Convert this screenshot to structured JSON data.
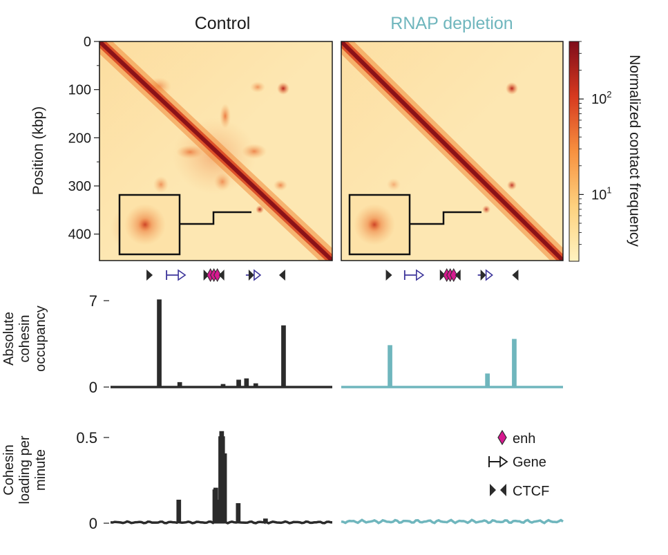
{
  "heatmaps": {
    "control_title": "Control",
    "rnap_title": "RNAP depletion",
    "ylabel": "Position (kbp)",
    "yticks": [
      "0",
      "100",
      "200",
      "300",
      "400"
    ],
    "ytick_values": [
      0,
      100,
      200,
      300,
      400
    ],
    "range_kbp": [
      0,
      455
    ]
  },
  "colorbar": {
    "label": "Normalized contact frequency",
    "ticks": [
      {
        "base": "10",
        "exp": "2",
        "value": 100
      },
      {
        "base": "10",
        "exp": "1",
        "value": 10
      }
    ],
    "log_range": [
      2,
      400
    ]
  },
  "colors": {
    "control": "#2b2b2b",
    "rnap": "#6fb6bd",
    "enhancer": "#d6198f",
    "gene": "#3b3399",
    "ctcf": "#2b2b2b"
  },
  "chart_data": [
    {
      "type": "heatmap",
      "title": "Control",
      "ylabel": "Position (kbp)",
      "axis_range_kbp": [
        0,
        455
      ],
      "scale": "log",
      "value_range": [
        2,
        400
      ],
      "features": [
        "strong diagonal",
        "corner peak at (100, 355)",
        "enhancer cluster 200-320 kbp",
        "inset zoom around (355, 300)"
      ]
    },
    {
      "type": "heatmap",
      "title": "RNAP depletion",
      "axis_range_kbp": [
        0,
        455
      ],
      "scale": "log",
      "value_range": [
        2,
        400
      ],
      "features": [
        "strong diagonal",
        "corner peak at (100, 355)",
        "corner peak at (300, 355)",
        "inset zoom"
      ]
    },
    {
      "type": "line",
      "ylabel": "Absolute cohesin occupancy",
      "yticks": [
        "7",
        "0"
      ],
      "ytick_values": [
        7,
        0
      ],
      "ylim": [
        0,
        7.8
      ],
      "x_range_kbp": [
        0,
        455
      ],
      "series": [
        {
          "name": "Control",
          "color": "#2b2b2b",
          "peaks": [
            [
              100,
              7.0
            ],
            [
              142,
              0.3
            ],
            [
              231,
              0.15
            ],
            [
              263,
              0.5
            ],
            [
              279,
              0.6
            ],
            [
              298,
              0.2
            ],
            [
              355,
              4.9
            ]
          ]
        },
        {
          "name": "RNAP depletion",
          "color": "#6fb6bd",
          "peaks": [
            [
              100,
              3.3
            ],
            [
              300,
              1.0
            ],
            [
              355,
              3.8
            ]
          ]
        }
      ]
    },
    {
      "type": "line",
      "ylabel": "Cohesin loading per minute",
      "yticks": [
        "0.5",
        "0"
      ],
      "ytick_values": [
        0.5,
        0
      ],
      "ylim": [
        0,
        0.57
      ],
      "x_range_kbp": [
        0,
        455
      ],
      "series": [
        {
          "name": "Control",
          "color": "#2b2b2b",
          "peaks": [
            [
              140,
              0.13
            ],
            [
              214,
              0.19
            ],
            [
              216,
              0.2
            ],
            [
              220,
              0.13
            ],
            [
              226,
              0.5
            ],
            [
              228,
              0.53
            ],
            [
              230,
              0.5
            ],
            [
              234,
              0.4
            ],
            [
              262,
              0.11
            ],
            [
              318,
              0.02
            ]
          ]
        },
        {
          "name": "RNAP depletion",
          "color": "#6fb6bd",
          "peaks": [],
          "baseline": 0.04
        }
      ]
    }
  ],
  "tracks": {
    "occupancy_ylabel_lines": [
      "Absolute",
      "cohesin",
      "occupancy"
    ],
    "loading_ylabel_lines": [
      "Cohesin",
      "loading per",
      "minute"
    ]
  },
  "legend": {
    "enh": "enh",
    "gene": "Gene",
    "ctcf": "CTCF"
  },
  "annotations": {
    "ctcf_fwd_kbp": [
      100
    ],
    "ctcf_rev_kbp": [
      355
    ],
    "genes_kbp": [
      150
    ],
    "enhancers_kbp": [
      222,
      228,
      232
    ],
    "gene_pairs_kbp": [
      305
    ],
    "gene_pairs_rnap_kbp": [
      300
    ]
  }
}
